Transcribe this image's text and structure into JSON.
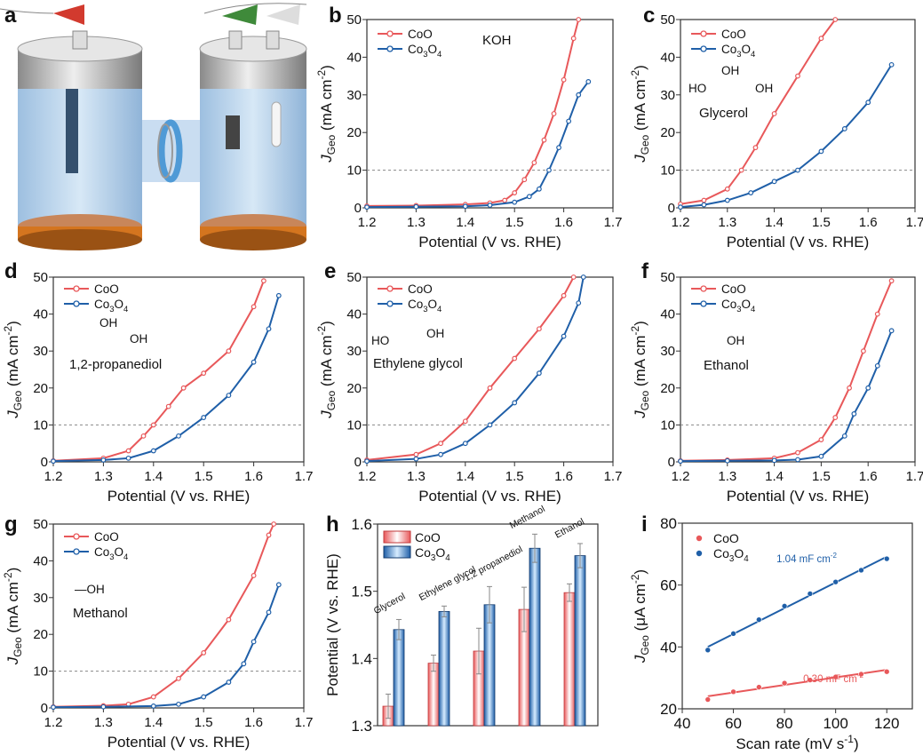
{
  "colors": {
    "coo": "#e8585a",
    "co3o4": "#1f5fa8",
    "axis": "#333333",
    "ref": "#888888"
  },
  "panel_a": {
    "panel_label": "a"
  },
  "chart_data": [
    {
      "panel_label": "b",
      "type": "line",
      "annotation": [
        "KOH"
      ],
      "xlabel": "Potential (V vs. RHE)",
      "ylabel": {
        "j": "J",
        "sub": "Geo",
        "unit": " (mA cm",
        "sup": "-2",
        "end": ")"
      },
      "xlim": [
        1.2,
        1.7
      ],
      "ylim": [
        0,
        50
      ],
      "xticks": [
        "1.2",
        "1.3",
        "1.4",
        "1.5",
        "1.6",
        "1.7"
      ],
      "yticks": [
        "0",
        "10",
        "20",
        "30",
        "40",
        "50"
      ],
      "ref_line_y": 10,
      "series": [
        {
          "name": "CoO",
          "x": [
            1.2,
            1.3,
            1.4,
            1.45,
            1.48,
            1.5,
            1.52,
            1.54,
            1.56,
            1.58,
            1.6,
            1.62,
            1.63
          ],
          "y": [
            0.5,
            0.6,
            0.9,
            1.3,
            2,
            4,
            7.5,
            12,
            18,
            25,
            34,
            45,
            50
          ]
        },
        {
          "name": "Co3O4",
          "x": [
            1.2,
            1.3,
            1.4,
            1.45,
            1.5,
            1.53,
            1.55,
            1.57,
            1.59,
            1.61,
            1.63,
            1.65
          ],
          "y": [
            0.2,
            0.3,
            0.4,
            0.7,
            1.5,
            3,
            5,
            10,
            16,
            23,
            30,
            33.5
          ]
        }
      ]
    },
    {
      "panel_label": "c",
      "type": "line",
      "annotation": [
        "Glycerol",
        "HO",
        "OH",
        "OH"
      ],
      "xlabel": "Potential (V vs. RHE)",
      "ylabel": {
        "j": "J",
        "sub": "Geo",
        "unit": " (mA cm",
        "sup": "-2",
        "end": ")"
      },
      "xlim": [
        1.2,
        1.7
      ],
      "ylim": [
        0,
        50
      ],
      "xticks": [
        "1.2",
        "1.3",
        "1.4",
        "1.5",
        "1.6",
        "1.7"
      ],
      "yticks": [
        "0",
        "10",
        "20",
        "30",
        "40",
        "50"
      ],
      "ref_line_y": 10,
      "series": [
        {
          "name": "CoO",
          "x": [
            1.2,
            1.25,
            1.3,
            1.33,
            1.36,
            1.4,
            1.45,
            1.5,
            1.53
          ],
          "y": [
            1,
            2,
            5,
            10,
            16,
            25,
            35,
            45,
            50
          ]
        },
        {
          "name": "Co3O4",
          "x": [
            1.2,
            1.25,
            1.3,
            1.35,
            1.4,
            1.45,
            1.5,
            1.55,
            1.6,
            1.65
          ],
          "y": [
            0.2,
            0.8,
            2,
            4,
            7,
            10,
            15,
            21,
            28,
            38
          ]
        }
      ]
    },
    {
      "panel_label": "d",
      "type": "line",
      "annotation": [
        "1,2-propanediol",
        "OH",
        "OH"
      ],
      "xlabel": "Potential (V vs. RHE)",
      "ylabel": {
        "j": "J",
        "sub": "Geo",
        "unit": " (mA cm",
        "sup": "-2",
        "end": ")"
      },
      "xlim": [
        1.2,
        1.7
      ],
      "ylim": [
        0,
        50
      ],
      "xticks": [
        "1.2",
        "1.3",
        "1.4",
        "1.5",
        "1.6",
        "1.7"
      ],
      "yticks": [
        "0",
        "10",
        "20",
        "30",
        "40",
        "50"
      ],
      "ref_line_y": 10,
      "series": [
        {
          "name": "CoO",
          "x": [
            1.2,
            1.3,
            1.35,
            1.38,
            1.4,
            1.43,
            1.46,
            1.5,
            1.55,
            1.6,
            1.62
          ],
          "y": [
            0.3,
            1,
            3,
            7,
            10,
            15,
            20,
            24,
            30,
            42,
            49
          ]
        },
        {
          "name": "Co3O4",
          "x": [
            1.2,
            1.3,
            1.35,
            1.4,
            1.45,
            1.5,
            1.55,
            1.6,
            1.63,
            1.65
          ],
          "y": [
            0.2,
            0.5,
            1,
            3,
            7,
            12,
            18,
            27,
            36,
            45
          ]
        }
      ]
    },
    {
      "panel_label": "e",
      "type": "line",
      "annotation": [
        "Ethylene glycol",
        "HO",
        "OH"
      ],
      "xlabel": "Potential (V vs. RHE)",
      "ylabel": {
        "j": "J",
        "sub": "Geo",
        "unit": " (mA cm",
        "sup": "-2",
        "end": ")"
      },
      "xlim": [
        1.2,
        1.7
      ],
      "ylim": [
        0,
        50
      ],
      "xticks": [
        "1.2",
        "1.3",
        "1.4",
        "1.5",
        "1.6",
        "1.7"
      ],
      "yticks": [
        "0",
        "10",
        "20",
        "30",
        "40",
        "50"
      ],
      "ref_line_y": 10,
      "series": [
        {
          "name": "CoO",
          "x": [
            1.2,
            1.3,
            1.35,
            1.4,
            1.45,
            1.5,
            1.55,
            1.6,
            1.62
          ],
          "y": [
            0.5,
            2,
            5,
            11,
            20,
            28,
            36,
            45,
            50
          ]
        },
        {
          "name": "Co3O4",
          "x": [
            1.2,
            1.3,
            1.35,
            1.4,
            1.45,
            1.5,
            1.55,
            1.6,
            1.63,
            1.64
          ],
          "y": [
            0.2,
            0.8,
            2,
            5,
            10,
            16,
            24,
            34,
            43,
            50
          ]
        }
      ]
    },
    {
      "panel_label": "f",
      "type": "line",
      "annotation": [
        "Ethanol",
        "OH"
      ],
      "xlabel": "Potential (V vs. RHE)",
      "ylabel": {
        "j": "J",
        "sub": "Geo",
        "unit": " (mA cm",
        "sup": "-2",
        "end": ")"
      },
      "xlim": [
        1.2,
        1.7
      ],
      "ylim": [
        0,
        50
      ],
      "xticks": [
        "1.2",
        "1.3",
        "1.4",
        "1.5",
        "1.6",
        "1.7"
      ],
      "yticks": [
        "0",
        "10",
        "20",
        "30",
        "40",
        "50"
      ],
      "ref_line_y": 10,
      "series": [
        {
          "name": "CoO",
          "x": [
            1.2,
            1.3,
            1.4,
            1.45,
            1.5,
            1.53,
            1.56,
            1.59,
            1.62,
            1.65
          ],
          "y": [
            0.3,
            0.5,
            1,
            2.5,
            6,
            12,
            20,
            30,
            40,
            49
          ]
        },
        {
          "name": "Co3O4",
          "x": [
            1.2,
            1.3,
            1.4,
            1.45,
            1.5,
            1.55,
            1.57,
            1.6,
            1.62,
            1.65
          ],
          "y": [
            0.2,
            0.3,
            0.4,
            0.6,
            1.5,
            7,
            13,
            20,
            26,
            35.5
          ]
        }
      ]
    },
    {
      "panel_label": "g",
      "type": "line",
      "annotation": [
        "Methanol",
        "—OH"
      ],
      "xlabel": "Potential (V vs. RHE)",
      "ylabel": {
        "j": "J",
        "sub": "Geo",
        "unit": " (mA cm",
        "sup": "-2",
        "end": ")"
      },
      "xlim": [
        1.2,
        1.7
      ],
      "ylim": [
        0,
        50
      ],
      "xticks": [
        "1.2",
        "1.3",
        "1.4",
        "1.5",
        "1.6",
        "1.7"
      ],
      "yticks": [
        "0",
        "10",
        "20",
        "30",
        "40",
        "50"
      ],
      "ref_line_y": 10,
      "series": [
        {
          "name": "CoO",
          "x": [
            1.2,
            1.3,
            1.35,
            1.4,
            1.45,
            1.5,
            1.55,
            1.6,
            1.63,
            1.64
          ],
          "y": [
            0.3,
            0.6,
            1,
            3,
            8,
            15,
            24,
            36,
            47,
            50
          ]
        },
        {
          "name": "Co3O4",
          "x": [
            1.2,
            1.3,
            1.4,
            1.45,
            1.5,
            1.55,
            1.58,
            1.6,
            1.63,
            1.65
          ],
          "y": [
            0.2,
            0.3,
            0.5,
            1,
            3,
            7,
            12,
            18,
            26,
            33.5
          ]
        }
      ]
    },
    {
      "panel_label": "h",
      "type": "bar",
      "ylabel": "Potential (V vs. RHE)",
      "ylim": [
        1.3,
        1.6
      ],
      "yticks": [
        "1.3",
        "1.4",
        "1.5",
        "1.6"
      ],
      "categories": [
        "Glycerol",
        "Ethylene glycol",
        "1,2 propanediol",
        "Methanol",
        "Ethanol"
      ],
      "series": [
        {
          "name": "CoO",
          "values": [
            1.329,
            1.393,
            1.411,
            1.473,
            1.498
          ],
          "errors": [
            0.018,
            0.012,
            0.034,
            0.033,
            0.013
          ]
        },
        {
          "name": "Co3O4",
          "values": [
            1.443,
            1.47,
            1.48,
            1.564,
            1.553
          ],
          "errors": [
            0.015,
            0.008,
            0.027,
            0.021,
            0.018
          ]
        }
      ]
    },
    {
      "panel_label": "i",
      "type": "scatter",
      "xlabel": {
        "main": "Scan rate (mV s",
        "sup": "-1",
        "end": ")"
      },
      "ylabel": {
        "j": "J",
        "sub": "Geo",
        "unit": " (μA cm",
        "sup": "-2",
        "end": ")"
      },
      "xlim": [
        40,
        130
      ],
      "ylim": [
        20,
        80
      ],
      "xticks": [
        "40",
        "60",
        "80",
        "100",
        "120"
      ],
      "yticks": [
        "20",
        "40",
        "60",
        "80"
      ],
      "x": [
        50,
        60,
        70,
        80,
        90,
        100,
        110,
        120
      ],
      "series": [
        {
          "name": "CoO",
          "y": [
            23,
            25.5,
            27,
            28.3,
            29.3,
            30.3,
            31.2,
            32
          ],
          "fit_label": "0.30 mF cm",
          "fit_sup": "-2"
        },
        {
          "name": "Co3O4",
          "y": [
            39,
            44.3,
            48.8,
            53.2,
            57.2,
            61,
            64.8,
            68.5
          ],
          "fit_label": "1.04 mF cm",
          "fit_sup": "-2"
        }
      ]
    }
  ]
}
